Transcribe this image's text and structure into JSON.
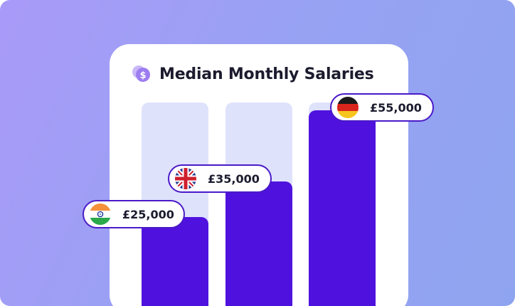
{
  "title": "Median Monthly Salaries",
  "title_icon": "coin-dollar-icon",
  "colors": {
    "bar": "#4f12de",
    "track": "#dfe2fb",
    "pill_border": "#4a1ac8",
    "background_start": "#a99af8",
    "background_end": "#8fa4f0"
  },
  "labels": {
    "india": "£25,000",
    "uk": "£35,000",
    "germany": "£55,000"
  },
  "flags": {
    "india": "india-flag-icon",
    "uk": "uk-flag-icon",
    "germany": "germany-flag-icon"
  },
  "chart_data": {
    "type": "bar",
    "title": "Median Monthly Salaries",
    "categories": [
      "India",
      "UK",
      "Germany"
    ],
    "values": [
      25000,
      35000,
      55000
    ],
    "value_labels": [
      "£25,000",
      "£35,000",
      "£55,000"
    ],
    "xlabel": "",
    "ylabel": "",
    "ylim": [
      0,
      70000
    ],
    "grid": false,
    "legend": "none"
  }
}
